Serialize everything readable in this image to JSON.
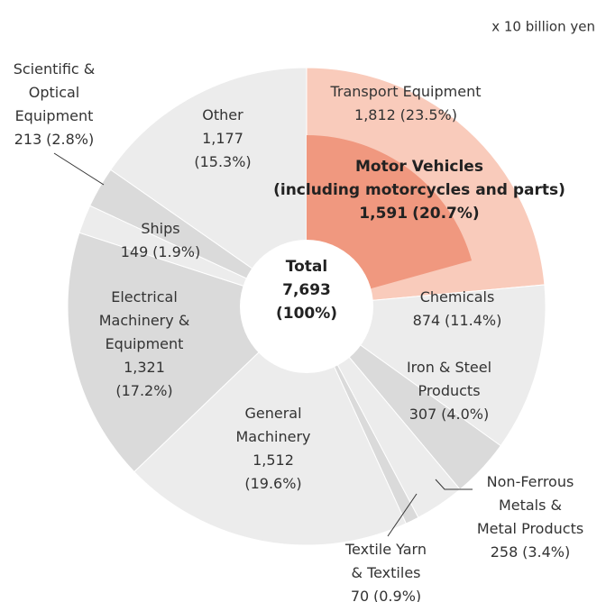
{
  "chart_data": {
    "type": "donut",
    "unit": "x 10 billion yen",
    "categories": [
      [
        "Transport Equipment"
      ],
      [
        "Chemicals"
      ],
      [
        "Iron & Steel",
        "Products"
      ],
      [
        "Non-Ferrous",
        "Metals &",
        "Metal Products"
      ],
      [
        "Textile Yarn",
        "& Textiles"
      ],
      [
        "General",
        "Machinery"
      ],
      [
        "Electrical",
        "Machinery &",
        "Equipment"
      ],
      [
        "Ships"
      ],
      [
        "Scientific &",
        "Optical",
        "Equipment"
      ],
      [
        "Other"
      ]
    ],
    "values": [
      1812,
      874,
      307,
      258,
      70,
      1512,
      1321,
      149,
      213,
      1177
    ],
    "value_labels": [
      "1,812",
      "874",
      "307",
      "258",
      "70",
      "1,512",
      "1,321",
      "149",
      "213",
      "1,177"
    ],
    "percents": [
      23.5,
      11.4,
      4.0,
      3.4,
      0.9,
      19.6,
      17.2,
      1.9,
      2.8,
      15.3
    ],
    "percent_labels": [
      "(23.5%)",
      "(11.4%)",
      "(4.0%)",
      "(3.4%)",
      "(0.9%)",
      "(19.6%)",
      "(17.2%)",
      "(1.9%)",
      "(2.8%)",
      "(15.3%)"
    ],
    "colors": [
      "#f9cbbb",
      "#ececec",
      "#dadada",
      "#ececec",
      "#dadada",
      "#ececec",
      "#dadada",
      "#ececec",
      "#dadada",
      "#ececec"
    ],
    "sub_segment": {
      "name": [
        "Motor Vehicles",
        "(including motorcycles and parts)"
      ],
      "value": 1591,
      "value_label": "1,591",
      "percent": 20.7,
      "percent_label": "(20.7%)",
      "color": "#f0987f"
    },
    "total": {
      "label": "Total",
      "value": 7693,
      "value_label": "7,693",
      "percent": 100,
      "percent_label": "(100%)"
    }
  }
}
